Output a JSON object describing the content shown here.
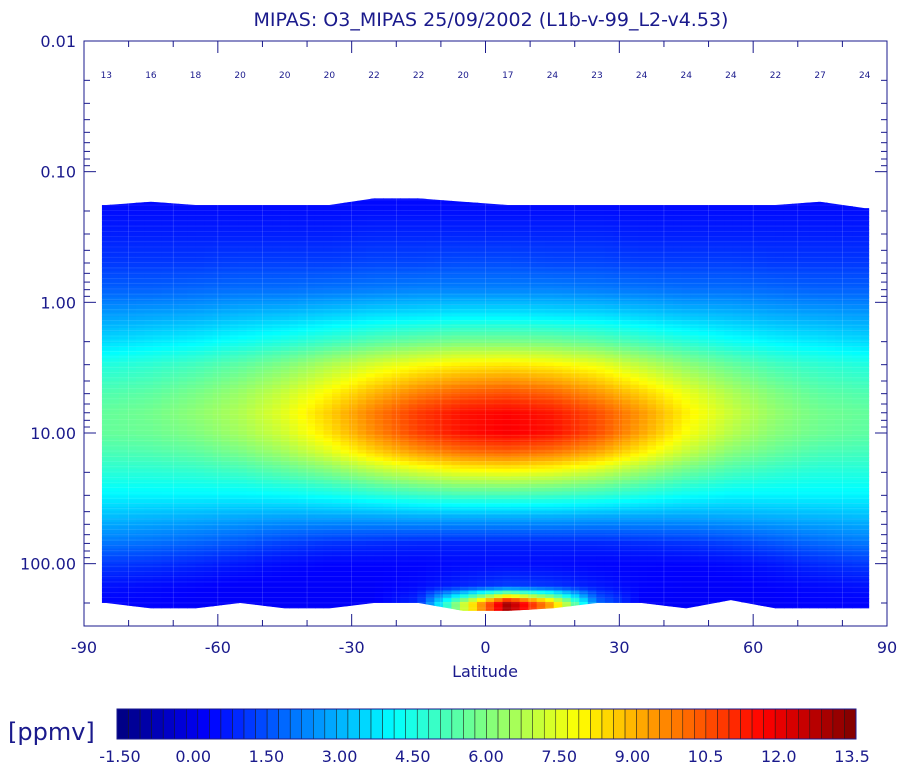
{
  "chart_data": {
    "type": "heatmap",
    "title": "MIPAS: O3_MIPAS 25/09/2002 (L1b-v-99_L2-v4.53)",
    "xlabel": "Latitude",
    "ylabel": "",
    "xlim": [
      -90,
      90
    ],
    "x_ticks": [
      "-90",
      "-60",
      "-30",
      "0",
      "30",
      "60",
      "90"
    ],
    "y_scale": "log",
    "ylim": [
      0.01,
      300
    ],
    "y_ticks": [
      {
        "value": 0.01,
        "label": "0.01"
      },
      {
        "value": 0.1,
        "label": "0.10"
      },
      {
        "value": 1,
        "label": "1.00"
      },
      {
        "value": 10,
        "label": "10.00"
      },
      {
        "value": 100,
        "label": "100.00"
      }
    ],
    "profile_counts": {
      "latitudes": [
        -85,
        -75,
        -65,
        -55,
        -45,
        -35,
        -25,
        -15,
        -5,
        5,
        15,
        25,
        35,
        45,
        55,
        65,
        75,
        85
      ],
      "labels": [
        "13",
        "16",
        "18",
        "20",
        "20",
        "20",
        "22",
        "22",
        "20",
        "17",
        "24",
        "23",
        "24",
        "24",
        "24",
        "22",
        "27",
        "24"
      ]
    },
    "ozone_field": {
      "latitudes": [
        -85,
        -75,
        -65,
        -55,
        -45,
        -35,
        -25,
        -15,
        -5,
        5,
        15,
        25,
        35,
        45,
        55,
        65,
        75,
        85
      ],
      "pressures": [
        0.18,
        0.3,
        0.5,
        0.8,
        1.2,
        2,
        3,
        5,
        7,
        10,
        14,
        20,
        30,
        45,
        70,
        100,
        150,
        200
      ],
      "values_ppmv": [
        [
          0.5,
          0.5,
          0.5,
          0.5,
          0.5,
          0.5,
          0.5,
          0.5,
          0.5,
          0.5,
          0.5,
          0.5,
          0.5,
          0.5,
          0.5,
          0.5,
          0.5,
          0.5
        ],
        [
          0.8,
          0.8,
          0.8,
          0.8,
          0.8,
          0.8,
          0.9,
          0.9,
          0.9,
          0.9,
          0.9,
          0.9,
          0.8,
          0.8,
          0.8,
          0.8,
          0.8,
          0.8
        ],
        [
          1.2,
          1.2,
          1.2,
          1.3,
          1.3,
          1.3,
          1.4,
          1.4,
          1.5,
          1.5,
          1.4,
          1.4,
          1.3,
          1.3,
          1.3,
          1.2,
          1.2,
          1.2
        ],
        [
          1.8,
          1.8,
          1.9,
          2.0,
          2.0,
          2.1,
          2.2,
          2.3,
          2.3,
          2.3,
          2.3,
          2.2,
          2.1,
          2.0,
          2.0,
          1.9,
          1.8,
          1.8
        ],
        [
          2.6,
          2.7,
          2.8,
          3.0,
          3.1,
          3.3,
          3.5,
          3.6,
          3.7,
          3.7,
          3.6,
          3.5,
          3.3,
          3.1,
          3.0,
          2.8,
          2.7,
          2.6
        ],
        [
          3.6,
          3.8,
          4.0,
          4.3,
          4.6,
          5.0,
          5.4,
          5.7,
          5.9,
          5.9,
          5.8,
          5.5,
          5.1,
          4.7,
          4.3,
          4.0,
          3.8,
          3.6
        ],
        [
          4.6,
          4.8,
          5.1,
          5.5,
          6.0,
          6.7,
          7.3,
          7.8,
          8.1,
          8.2,
          8.0,
          7.6,
          6.9,
          6.2,
          5.6,
          5.1,
          4.8,
          4.6
        ],
        [
          5.3,
          5.5,
          5.9,
          6.4,
          7.1,
          8.0,
          9.0,
          9.8,
          10.3,
          10.5,
          10.2,
          9.5,
          8.6,
          7.6,
          6.7,
          6.0,
          5.5,
          5.3
        ],
        [
          5.6,
          5.8,
          6.2,
          6.7,
          7.5,
          8.6,
          9.8,
          10.8,
          11.4,
          11.6,
          11.3,
          10.5,
          9.4,
          8.1,
          7.1,
          6.3,
          5.8,
          5.6
        ],
        [
          5.6,
          5.7,
          6.0,
          6.5,
          7.2,
          8.3,
          9.6,
          10.7,
          11.4,
          11.7,
          11.4,
          10.5,
          9.2,
          7.8,
          6.8,
          6.1,
          5.7,
          5.5
        ],
        [
          5.2,
          5.3,
          5.5,
          5.9,
          6.5,
          7.4,
          8.5,
          9.4,
          10.0,
          10.2,
          9.9,
          9.2,
          8.1,
          7.0,
          6.1,
          5.6,
          5.2,
          5.1
        ],
        [
          4.7,
          4.7,
          4.8,
          5.0,
          5.4,
          5.9,
          6.6,
          7.2,
          7.6,
          7.7,
          7.5,
          7.0,
          6.3,
          5.6,
          5.1,
          4.8,
          4.6,
          4.6
        ],
        [
          4.0,
          4.0,
          4.0,
          4.0,
          4.1,
          4.3,
          4.6,
          4.9,
          5.1,
          5.1,
          5.0,
          4.8,
          4.5,
          4.2,
          4.0,
          4.0,
          4.0,
          4.0
        ],
        [
          3.1,
          3.0,
          2.9,
          2.8,
          2.7,
          2.7,
          2.7,
          2.8,
          2.8,
          2.8,
          2.8,
          2.7,
          2.7,
          2.7,
          2.8,
          2.9,
          3.0,
          3.1
        ],
        [
          2.1,
          2.0,
          1.8,
          1.6,
          1.3,
          1.1,
          1.0,
          0.9,
          0.9,
          0.9,
          0.9,
          0.9,
          1.0,
          1.1,
          1.3,
          1.6,
          1.9,
          2.1
        ],
        [
          1.2,
          1.1,
          0.9,
          0.7,
          0.5,
          0.4,
          0.4,
          0.4,
          0.5,
          0.5,
          0.5,
          0.4,
          0.4,
          0.4,
          0.5,
          0.7,
          1.0,
          1.2
        ],
        [
          0.6,
          0.5,
          0.4,
          0.3,
          0.3,
          0.3,
          0.3,
          0.5,
          0.9,
          1.3,
          1.1,
          0.7,
          0.4,
          0.3,
          0.3,
          0.4,
          0.5,
          0.6
        ],
        [
          0.4,
          0.4,
          0.3,
          0.3,
          0.3,
          0.3,
          0.3,
          1.0,
          7.0,
          13.0,
          9.0,
          2.0,
          0.3,
          0.3,
          0.3,
          0.3,
          0.4,
          0.4
        ]
      ]
    },
    "colorbar": {
      "unit_label": "[ppmv]",
      "vmin": -1.5,
      "vmax": 13.5,
      "tick_labels": [
        "-1.50",
        "0.00",
        "1.50",
        "3.00",
        "4.50",
        "6.00",
        "7.50",
        "9.00",
        "10.5",
        "12.0",
        "13.5"
      ]
    }
  }
}
